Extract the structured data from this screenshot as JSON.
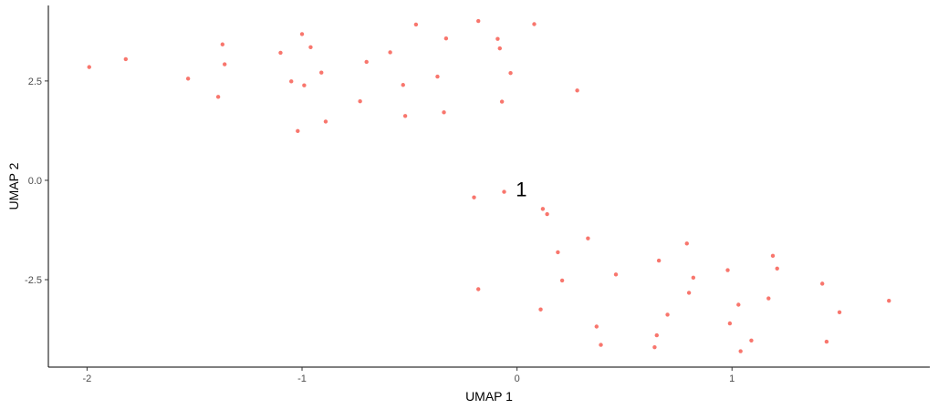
{
  "chart_data": {
    "type": "scatter",
    "title": "",
    "xlabel": "UMAP 1",
    "ylabel": "UMAP 2",
    "xlim": [
      -2.18,
      1.92
    ],
    "ylim": [
      -4.7,
      4.4
    ],
    "x_ticks": [
      -2,
      -1,
      0,
      1
    ],
    "x_tick_labels": [
      "-2",
      "-1",
      "0",
      "1"
    ],
    "y_ticks": [
      2.5,
      0,
      -2.5
    ],
    "y_tick_labels": [
      "2.5",
      "0.0",
      "-2.5"
    ],
    "grid": false,
    "legend": "none",
    "point_color": "#F8766D",
    "annotations": [
      {
        "text": "1",
        "x": 0.02,
        "y": -0.22
      }
    ],
    "points": [
      {
        "x": -1.99,
        "y": 2.85
      },
      {
        "x": -1.82,
        "y": 3.05
      },
      {
        "x": -1.53,
        "y": 2.56
      },
      {
        "x": -1.39,
        "y": 2.1
      },
      {
        "x": -1.37,
        "y": 3.42
      },
      {
        "x": -1.36,
        "y": 2.92
      },
      {
        "x": -1.1,
        "y": 3.21
      },
      {
        "x": -1.05,
        "y": 2.49
      },
      {
        "x": -1.02,
        "y": 1.24
      },
      {
        "x": -1.0,
        "y": 3.68
      },
      {
        "x": -0.99,
        "y": 2.39
      },
      {
        "x": -0.96,
        "y": 3.35
      },
      {
        "x": -0.91,
        "y": 2.71
      },
      {
        "x": -0.89,
        "y": 1.48
      },
      {
        "x": -0.73,
        "y": 1.99
      },
      {
        "x": -0.7,
        "y": 2.98
      },
      {
        "x": -0.59,
        "y": 3.22
      },
      {
        "x": -0.53,
        "y": 2.4
      },
      {
        "x": -0.52,
        "y": 1.62
      },
      {
        "x": -0.47,
        "y": 3.92
      },
      {
        "x": -0.37,
        "y": 2.61
      },
      {
        "x": -0.34,
        "y": 1.71
      },
      {
        "x": -0.33,
        "y": 3.57
      },
      {
        "x": -0.18,
        "y": 4.01
      },
      {
        "x": -0.09,
        "y": 3.56
      },
      {
        "x": -0.08,
        "y": 3.32
      },
      {
        "x": -0.07,
        "y": 1.98
      },
      {
        "x": -0.03,
        "y": 2.7
      },
      {
        "x": 0.08,
        "y": 3.93
      },
      {
        "x": 0.28,
        "y": 2.26
      },
      {
        "x": -0.2,
        "y": -0.43
      },
      {
        "x": -0.06,
        "y": -0.29
      },
      {
        "x": 0.12,
        "y": -0.72
      },
      {
        "x": 0.14,
        "y": -0.85
      },
      {
        "x": 0.19,
        "y": -1.81
      },
      {
        "x": 0.21,
        "y": -2.52
      },
      {
        "x": -0.18,
        "y": -2.74
      },
      {
        "x": 0.11,
        "y": -3.25
      },
      {
        "x": 0.33,
        "y": -1.46
      },
      {
        "x": 0.37,
        "y": -3.68
      },
      {
        "x": 0.39,
        "y": -4.14
      },
      {
        "x": 0.46,
        "y": -2.37
      },
      {
        "x": 0.64,
        "y": -4.2
      },
      {
        "x": 0.65,
        "y": -3.9
      },
      {
        "x": 0.66,
        "y": -2.02
      },
      {
        "x": 0.7,
        "y": -3.38
      },
      {
        "x": 0.79,
        "y": -1.59
      },
      {
        "x": 0.8,
        "y": -2.83
      },
      {
        "x": 0.82,
        "y": -2.45
      },
      {
        "x": 0.98,
        "y": -2.26
      },
      {
        "x": 0.99,
        "y": -3.6
      },
      {
        "x": 1.03,
        "y": -3.13
      },
      {
        "x": 1.04,
        "y": -4.3
      },
      {
        "x": 1.09,
        "y": -4.03
      },
      {
        "x": 1.17,
        "y": -2.97
      },
      {
        "x": 1.19,
        "y": -1.9
      },
      {
        "x": 1.21,
        "y": -2.22
      },
      {
        "x": 1.42,
        "y": -2.6
      },
      {
        "x": 1.44,
        "y": -4.06
      },
      {
        "x": 1.5,
        "y": -3.32
      },
      {
        "x": 1.73,
        "y": -3.03
      }
    ]
  }
}
